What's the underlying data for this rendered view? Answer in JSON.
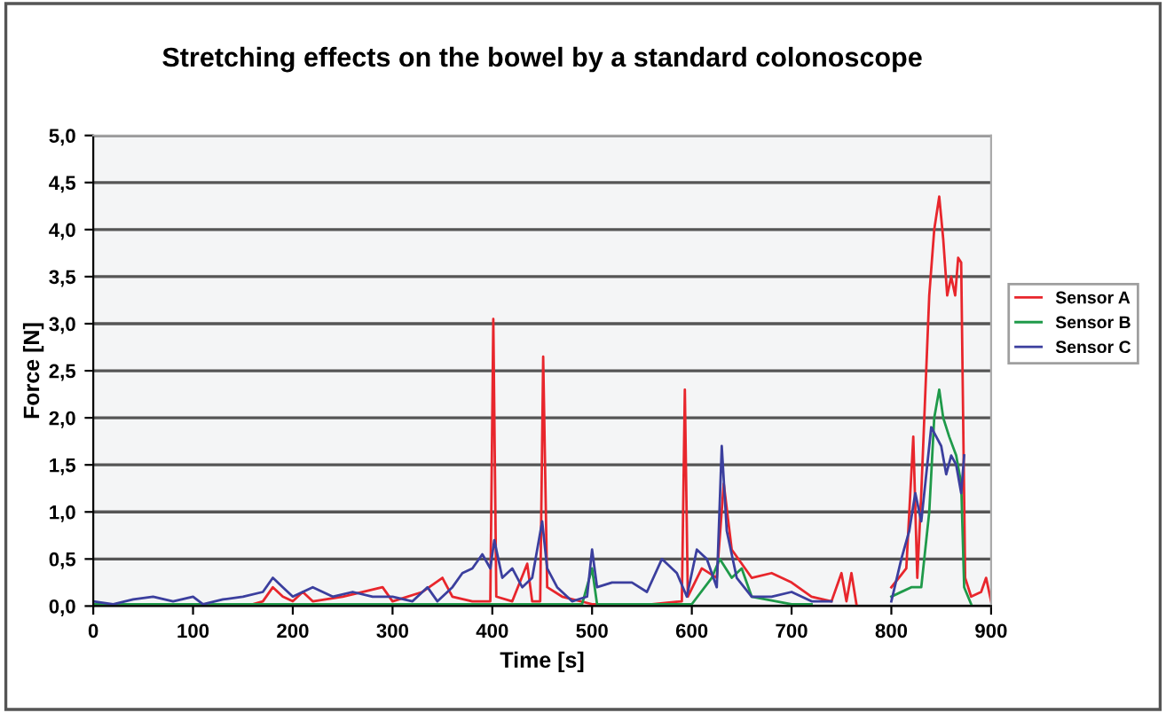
{
  "chart_data": {
    "type": "line",
    "title": "Stretching effects on the bowel by a standard colonoscope",
    "xlabel": "Time [s]",
    "ylabel": "Force [N]",
    "xlim": [
      0,
      900
    ],
    "xticks": [
      0,
      100,
      200,
      300,
      400,
      500,
      600,
      700,
      800,
      900
    ],
    "ylim": [
      0,
      5
    ],
    "yticks": [
      {
        "value": 0,
        "label": "0,0"
      },
      {
        "value": 0.5,
        "label": "0,5"
      },
      {
        "value": 1,
        "label": "1,0"
      },
      {
        "value": 1.5,
        "label": "1,5"
      },
      {
        "value": 2,
        "label": "2,0"
      },
      {
        "value": 2.5,
        "label": "2,5"
      },
      {
        "value": 3,
        "label": "3,0"
      },
      {
        "value": 3.5,
        "label": "3,5"
      },
      {
        "value": 4,
        "label": "4,0"
      },
      {
        "value": 4.5,
        "label": "4,5"
      },
      {
        "value": 5,
        "label": "5,0"
      }
    ],
    "grid": "y",
    "legend": "right",
    "marker": "none",
    "line_style": "solid",
    "series": [
      {
        "name": "Sensor A",
        "color": "#e8262c",
        "x": [
          0,
          160,
          170,
          180,
          190,
          200,
          210,
          220,
          250,
          290,
          300,
          330,
          350,
          360,
          380,
          398,
          401,
          404,
          420,
          435,
          440,
          448,
          451,
          455,
          470,
          500,
          560,
          590,
          593,
          596,
          610,
          625,
          632,
          640,
          660,
          680,
          700,
          720,
          740,
          750,
          755,
          760,
          765,
          780,
          800,
          815,
          822,
          826,
          830,
          838,
          843,
          848,
          852,
          856,
          860,
          864,
          867,
          870,
          874,
          880,
          890,
          895,
          900
        ],
        "values": [
          0.02,
          0.02,
          0.05,
          0.2,
          0.1,
          0.05,
          0.15,
          0.05,
          0.1,
          0.2,
          0.05,
          0.15,
          0.3,
          0.1,
          0.05,
          0.05,
          3.05,
          0.1,
          0.05,
          0.45,
          0.05,
          0.05,
          2.65,
          0.2,
          0.1,
          0.02,
          0.02,
          0.05,
          2.3,
          0.1,
          0.4,
          0.3,
          1.3,
          0.6,
          0.3,
          0.35,
          0.25,
          0.1,
          0.05,
          0.35,
          0.05,
          0.35,
          0.02,
          null,
          0.2,
          0.4,
          1.8,
          0.3,
          1.2,
          3.3,
          4.0,
          4.35,
          3.9,
          3.3,
          3.5,
          3.3,
          3.7,
          3.65,
          0.3,
          0.1,
          0.15,
          0.3,
          0.05
        ]
      },
      {
        "name": "Sensor B",
        "color": "#1f9a4a",
        "x": [
          0,
          490,
          500,
          505,
          600,
          620,
          628,
          640,
          650,
          660,
          700,
          720,
          790,
          800,
          820,
          830,
          838,
          843,
          848,
          852,
          858,
          865,
          870,
          873,
          880
        ],
        "values": [
          0.02,
          0.02,
          0.4,
          0.02,
          0.02,
          0.3,
          0.5,
          0.3,
          0.4,
          0.1,
          0.02,
          0.02,
          null,
          0.1,
          0.2,
          0.2,
          1.0,
          2.0,
          2.3,
          2.0,
          1.8,
          1.6,
          1.3,
          0.2,
          0.02
        ]
      },
      {
        "name": "Sensor C",
        "color": "#3b3f9e",
        "x": [
          0,
          20,
          40,
          60,
          80,
          100,
          110,
          130,
          150,
          170,
          180,
          190,
          200,
          220,
          240,
          260,
          280,
          300,
          320,
          335,
          345,
          360,
          370,
          380,
          390,
          398,
          402,
          410,
          420,
          430,
          440,
          450,
          455,
          465,
          480,
          495,
          500,
          505,
          520,
          540,
          555,
          570,
          585,
          595,
          605,
          615,
          625,
          630,
          635,
          645,
          660,
          680,
          700,
          720,
          740,
          770,
          800,
          810,
          818,
          824,
          830,
          835,
          840,
          845,
          850,
          855,
          860,
          865,
          870,
          873
        ],
        "values": [
          0.05,
          0.02,
          0.07,
          0.1,
          0.05,
          0.1,
          0.02,
          0.07,
          0.1,
          0.15,
          0.3,
          0.2,
          0.1,
          0.2,
          0.1,
          0.15,
          0.1,
          0.1,
          0.05,
          0.2,
          0.05,
          0.2,
          0.35,
          0.4,
          0.55,
          0.4,
          0.7,
          0.3,
          0.4,
          0.2,
          0.3,
          0.9,
          0.4,
          0.2,
          0.05,
          0.1,
          0.6,
          0.2,
          0.25,
          0.25,
          0.15,
          0.5,
          0.35,
          0.1,
          0.6,
          0.5,
          0.2,
          1.7,
          0.8,
          0.3,
          0.1,
          0.1,
          0.15,
          0.05,
          0.05,
          null,
          0.05,
          0.5,
          0.8,
          1.2,
          0.9,
          1.4,
          1.9,
          1.8,
          1.7,
          1.4,
          1.6,
          1.5,
          1.2,
          1.6
        ]
      }
    ]
  }
}
